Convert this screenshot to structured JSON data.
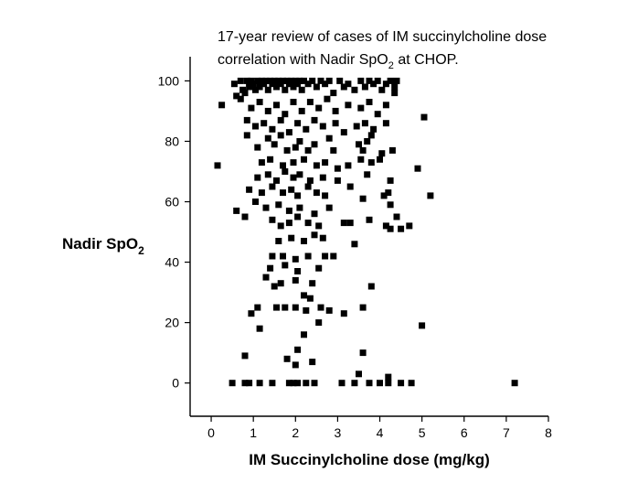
{
  "chart_data": {
    "type": "scatter",
    "title_line1": "17-year review of cases of IM succinylcholine dose",
    "title_line2_prefix": "correlation with Nadir SpO",
    "title_line2_subscript": "2",
    "title_line2_suffix": " at CHOP.",
    "xlabel": "IM Succinylcholine dose (mg/kg)",
    "ylabel_main": "Nadir SpO",
    "ylabel_subscript": "2",
    "xlim": [
      -0.5,
      8
    ],
    "ylim": [
      -11,
      108
    ],
    "x_ticks": [
      0,
      1,
      2,
      3,
      4,
      5,
      6,
      7,
      8
    ],
    "y_ticks": [
      0,
      20,
      40,
      60,
      80,
      100
    ],
    "marker_color": "#000000",
    "grid": false,
    "points": [
      [
        0.25,
        92
      ],
      [
        0.55,
        99
      ],
      [
        0.6,
        95
      ],
      [
        0.7,
        100
      ],
      [
        0.75,
        97
      ],
      [
        0.8,
        96
      ],
      [
        0.85,
        100
      ],
      [
        0.9,
        98
      ],
      [
        0.95,
        100
      ],
      [
        1.0,
        99
      ],
      [
        1.05,
        97
      ],
      [
        1.1,
        100
      ],
      [
        1.15,
        98
      ],
      [
        1.2,
        100
      ],
      [
        1.25,
        99
      ],
      [
        1.3,
        100
      ],
      [
        1.35,
        97
      ],
      [
        1.4,
        100
      ],
      [
        1.45,
        99
      ],
      [
        1.5,
        100
      ],
      [
        1.55,
        98
      ],
      [
        1.6,
        100
      ],
      [
        1.65,
        99
      ],
      [
        1.7,
        100
      ],
      [
        1.75,
        97
      ],
      [
        1.8,
        100
      ],
      [
        1.85,
        99
      ],
      [
        1.9,
        100
      ],
      [
        1.95,
        98
      ],
      [
        2.0,
        100
      ],
      [
        2.05,
        99
      ],
      [
        2.1,
        100
      ],
      [
        2.15,
        97
      ],
      [
        2.2,
        100
      ],
      [
        2.3,
        99
      ],
      [
        2.4,
        100
      ],
      [
        2.5,
        98
      ],
      [
        2.6,
        100
      ],
      [
        2.7,
        99
      ],
      [
        2.8,
        100
      ],
      [
        2.9,
        96
      ],
      [
        3.05,
        100
      ],
      [
        3.15,
        98
      ],
      [
        3.25,
        99
      ],
      [
        3.4,
        97
      ],
      [
        3.55,
        100
      ],
      [
        3.65,
        98
      ],
      [
        3.75,
        100
      ],
      [
        3.85,
        99
      ],
      [
        3.95,
        100
      ],
      [
        4.05,
        97
      ],
      [
        4.15,
        99
      ],
      [
        4.25,
        100
      ],
      [
        4.35,
        98
      ],
      [
        4.4,
        100
      ],
      [
        0.7,
        94
      ],
      [
        0.95,
        91
      ],
      [
        1.15,
        93
      ],
      [
        1.35,
        90
      ],
      [
        1.55,
        92
      ],
      [
        1.75,
        89
      ],
      [
        1.95,
        93
      ],
      [
        2.15,
        90
      ],
      [
        2.35,
        93
      ],
      [
        2.55,
        91
      ],
      [
        2.75,
        94
      ],
      [
        2.95,
        90
      ],
      [
        3.25,
        92
      ],
      [
        3.55,
        91
      ],
      [
        3.75,
        93
      ],
      [
        3.95,
        89
      ],
      [
        4.15,
        92
      ],
      [
        4.35,
        96
      ],
      [
        0.85,
        87
      ],
      [
        1.05,
        85
      ],
      [
        1.25,
        86
      ],
      [
        1.45,
        84
      ],
      [
        1.65,
        87
      ],
      [
        1.85,
        83
      ],
      [
        2.05,
        86
      ],
      [
        2.25,
        84
      ],
      [
        2.45,
        87
      ],
      [
        2.65,
        85
      ],
      [
        2.95,
        86
      ],
      [
        3.15,
        83
      ],
      [
        3.45,
        85
      ],
      [
        3.65,
        86
      ],
      [
        3.85,
        84
      ],
      [
        4.15,
        86
      ],
      [
        5.05,
        88
      ],
      [
        0.85,
        82
      ],
      [
        1.35,
        81
      ],
      [
        1.65,
        82
      ],
      [
        2.1,
        80
      ],
      [
        2.45,
        79
      ],
      [
        2.8,
        81
      ],
      [
        3.5,
        79
      ],
      [
        3.7,
        80
      ],
      [
        3.8,
        82
      ],
      [
        1.1,
        78
      ],
      [
        1.5,
        79
      ],
      [
        1.8,
        77
      ],
      [
        2.0,
        78
      ],
      [
        2.3,
        77
      ],
      [
        2.9,
        77
      ],
      [
        3.6,
        77
      ],
      [
        4.05,
        76
      ],
      [
        4.3,
        77
      ],
      [
        0.15,
        72
      ],
      [
        1.2,
        73
      ],
      [
        1.4,
        74
      ],
      [
        1.7,
        72
      ],
      [
        1.95,
        73
      ],
      [
        2.2,
        74
      ],
      [
        2.5,
        72
      ],
      [
        2.7,
        73
      ],
      [
        3.0,
        71
      ],
      [
        3.25,
        72
      ],
      [
        3.55,
        74
      ],
      [
        3.8,
        73
      ],
      [
        4.0,
        74
      ],
      [
        4.9,
        71
      ],
      [
        1.1,
        68
      ],
      [
        1.35,
        69
      ],
      [
        1.55,
        67
      ],
      [
        1.75,
        70
      ],
      [
        1.95,
        68
      ],
      [
        2.1,
        69
      ],
      [
        2.35,
        67
      ],
      [
        2.65,
        68
      ],
      [
        3.0,
        67
      ],
      [
        3.7,
        69
      ],
      [
        4.25,
        67
      ],
      [
        0.9,
        64
      ],
      [
        1.2,
        63
      ],
      [
        1.45,
        65
      ],
      [
        1.7,
        63
      ],
      [
        1.9,
        64
      ],
      [
        2.05,
        62
      ],
      [
        2.3,
        65
      ],
      [
        2.5,
        63
      ],
      [
        2.7,
        62
      ],
      [
        3.3,
        65
      ],
      [
        3.6,
        61
      ],
      [
        4.1,
        62
      ],
      [
        4.2,
        63
      ],
      [
        5.2,
        62
      ],
      [
        1.05,
        60
      ],
      [
        1.3,
        58
      ],
      [
        1.6,
        59
      ],
      [
        1.85,
        57
      ],
      [
        2.1,
        58
      ],
      [
        2.45,
        56
      ],
      [
        2.8,
        58
      ],
      [
        4.25,
        59
      ],
      [
        0.6,
        57
      ],
      [
        0.8,
        55
      ],
      [
        1.45,
        54
      ],
      [
        1.65,
        52
      ],
      [
        1.85,
        53
      ],
      [
        2.05,
        55
      ],
      [
        2.3,
        53
      ],
      [
        2.55,
        52
      ],
      [
        3.15,
        53
      ],
      [
        3.3,
        53
      ],
      [
        3.75,
        54
      ],
      [
        4.15,
        52
      ],
      [
        4.25,
        51
      ],
      [
        4.4,
        55
      ],
      [
        4.5,
        51
      ],
      [
        4.7,
        52
      ],
      [
        1.6,
        47
      ],
      [
        1.9,
        48
      ],
      [
        2.2,
        47
      ],
      [
        2.45,
        49
      ],
      [
        2.65,
        48
      ],
      [
        3.4,
        46
      ],
      [
        1.45,
        42
      ],
      [
        1.7,
        42
      ],
      [
        2.0,
        41
      ],
      [
        2.3,
        42
      ],
      [
        2.7,
        42
      ],
      [
        2.9,
        42
      ],
      [
        1.4,
        38
      ],
      [
        1.75,
        39
      ],
      [
        2.05,
        37
      ],
      [
        2.55,
        38
      ],
      [
        1.5,
        32
      ],
      [
        1.65,
        33
      ],
      [
        2.0,
        34
      ],
      [
        2.4,
        33
      ],
      [
        3.8,
        32
      ],
      [
        1.3,
        35
      ],
      [
        2.2,
        29
      ],
      [
        2.35,
        28
      ],
      [
        2.6,
        25
      ],
      [
        3.6,
        25
      ],
      [
        1.1,
        25
      ],
      [
        1.55,
        25
      ],
      [
        1.75,
        25
      ],
      [
        2.0,
        25
      ],
      [
        2.25,
        24
      ],
      [
        0.95,
        23
      ],
      [
        2.8,
        24
      ],
      [
        3.15,
        23
      ],
      [
        2.55,
        20
      ],
      [
        5.0,
        19
      ],
      [
        1.15,
        18
      ],
      [
        2.2,
        16
      ],
      [
        1.8,
        8
      ],
      [
        2.0,
        6
      ],
      [
        2.4,
        7
      ],
      [
        2.05,
        11
      ],
      [
        0.8,
        9
      ],
      [
        3.6,
        10
      ],
      [
        0.5,
        0
      ],
      [
        0.8,
        0
      ],
      [
        0.9,
        0
      ],
      [
        1.15,
        0
      ],
      [
        1.45,
        0
      ],
      [
        1.85,
        0
      ],
      [
        1.95,
        0
      ],
      [
        2.05,
        0
      ],
      [
        2.25,
        0
      ],
      [
        2.45,
        0
      ],
      [
        3.1,
        0
      ],
      [
        3.4,
        0
      ],
      [
        3.75,
        0
      ],
      [
        4.0,
        0
      ],
      [
        4.2,
        0
      ],
      [
        4.5,
        0
      ],
      [
        4.75,
        0
      ],
      [
        7.2,
        0
      ],
      [
        3.5,
        3
      ],
      [
        4.2,
        2
      ]
    ]
  }
}
